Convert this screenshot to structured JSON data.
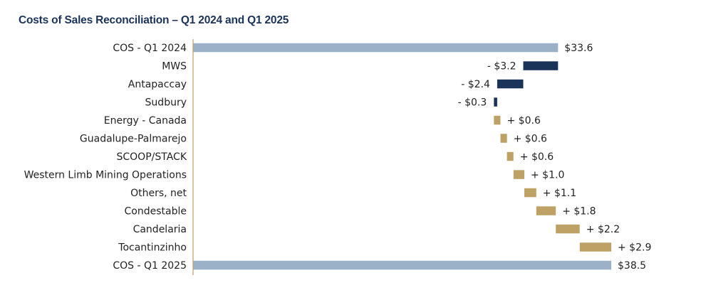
{
  "chart_data": {
    "type": "bar",
    "title": "Costs of Sales Reconciliation – Q1 2024 and Q1 2025",
    "categories": [
      "COS - Q1 2024",
      "MWS",
      "Antapaccay",
      "Sudbury",
      "Energy - Canada",
      "Guadalupe-Palmarejo",
      "SCOOP/STACK",
      "Western Limb Mining Operations",
      "Others, net",
      "Condestable",
      "Candelaria",
      "Tocantinzinho",
      "COS - Q1 2025"
    ],
    "values": [
      33.6,
      -3.2,
      -2.4,
      -0.3,
      0.6,
      0.6,
      0.6,
      1.0,
      1.1,
      1.8,
      2.2,
      2.9,
      38.5
    ],
    "value_labels": [
      "$33.6",
      "- $3.2",
      "- $2.4",
      "- $0.3",
      "+ $0.6",
      "+ $0.6",
      "+ $0.6",
      "+ $1.0",
      "+ $1.1",
      "+ $1.8",
      "+ $2.2",
      "+ $2.9",
      "$38.5"
    ],
    "kinds": [
      "total",
      "decrease",
      "decrease",
      "decrease",
      "increase",
      "increase",
      "increase",
      "increase",
      "increase",
      "increase",
      "increase",
      "increase",
      "total"
    ],
    "colors": {
      "total": "#9bb1c8",
      "decrease": "#1b3358",
      "increase": "#bea164",
      "axis": "#bea164"
    },
    "xlim": [
      0,
      38.5
    ],
    "orientation": "horizontal-waterfall",
    "grid": false
  }
}
